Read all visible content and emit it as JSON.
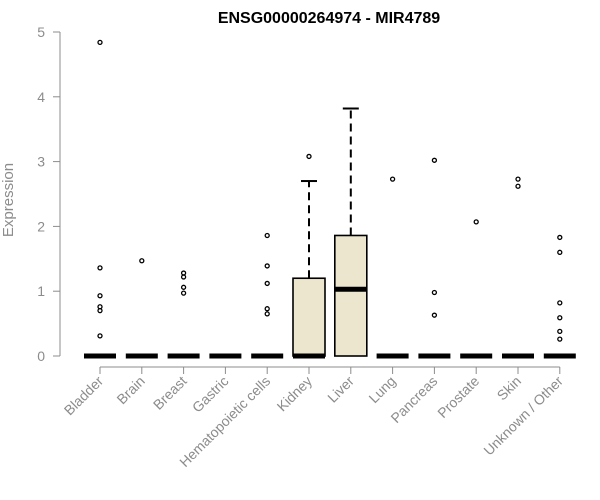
{
  "chart_data": {
    "type": "box",
    "title": "ENSG00000264974 - MIR4789",
    "xlabel": "",
    "ylabel": "Expression",
    "ylim": [
      0,
      5
    ],
    "yticks": [
      "0",
      "1",
      "2",
      "3",
      "4",
      "5"
    ],
    "grid": false,
    "box_fill": "#ede6cf",
    "categories": [
      "Bladder",
      "Brain",
      "Breast",
      "Gastric",
      "Hematopoietic cells",
      "Kidney",
      "Liver",
      "Lung",
      "Pancreas",
      "Prostate",
      "Skin",
      "Unknown / Other"
    ],
    "boxes": [
      {
        "category": "Bladder",
        "min": 0,
        "q1": 0,
        "median": 0,
        "q3": 0,
        "max": 0,
        "outliers": [
          4.84,
          1.36,
          0.93,
          0.76,
          0.7,
          0.31
        ]
      },
      {
        "category": "Brain",
        "min": 0,
        "q1": 0,
        "median": 0,
        "q3": 0,
        "max": 0,
        "outliers": [
          1.47
        ]
      },
      {
        "category": "Breast",
        "min": 0,
        "q1": 0,
        "median": 0,
        "q3": 0,
        "max": 0,
        "outliers": [
          1.28,
          1.22,
          1.06,
          0.97
        ]
      },
      {
        "category": "Gastric",
        "min": 0,
        "q1": 0,
        "median": 0,
        "q3": 0,
        "max": 0,
        "outliers": []
      },
      {
        "category": "Hematopoietic cells",
        "min": 0,
        "q1": 0,
        "median": 0,
        "q3": 0,
        "max": 0,
        "outliers": [
          1.86,
          1.39,
          1.12,
          0.73,
          0.65
        ]
      },
      {
        "category": "Kidney",
        "min": 0,
        "q1": 0,
        "median": 0,
        "q3": 1.2,
        "max": 2.7,
        "outliers": [
          3.08
        ]
      },
      {
        "category": "Liver",
        "min": 0,
        "q1": 0,
        "median": 1.03,
        "q3": 1.86,
        "max": 3.82,
        "outliers": []
      },
      {
        "category": "Lung",
        "min": 0,
        "q1": 0,
        "median": 0,
        "q3": 0,
        "max": 0,
        "outliers": [
          2.73
        ]
      },
      {
        "category": "Pancreas",
        "min": 0,
        "q1": 0,
        "median": 0,
        "q3": 0,
        "max": 0,
        "outliers": [
          3.02,
          0.98,
          0.63
        ]
      },
      {
        "category": "Prostate",
        "min": 0,
        "q1": 0,
        "median": 0,
        "q3": 0,
        "max": 0,
        "outliers": [
          2.07
        ]
      },
      {
        "category": "Skin",
        "min": 0,
        "q1": 0,
        "median": 0,
        "q3": 0,
        "max": 0,
        "outliers": [
          2.73,
          2.62
        ]
      },
      {
        "category": "Unknown / Other",
        "min": 0,
        "q1": 0,
        "median": 0,
        "q3": 0,
        "max": 0,
        "outliers": [
          1.83,
          1.6,
          0.82,
          0.59,
          0.38,
          0.26
        ]
      }
    ]
  }
}
